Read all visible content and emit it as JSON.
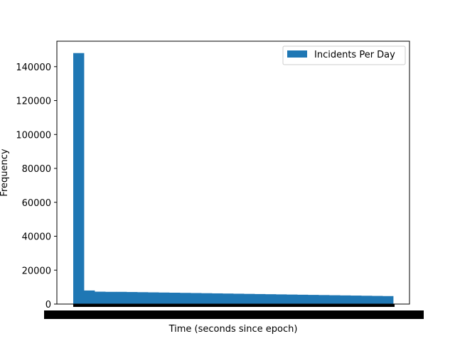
{
  "chart_data": {
    "type": "bar",
    "subtype": "histogram",
    "xlabel": "Time (seconds since epoch)",
    "ylabel": "Frequency",
    "ylim": [
      0,
      155000
    ],
    "yticks": [
      0,
      20000,
      40000,
      60000,
      80000,
      100000,
      120000,
      140000
    ],
    "x_tick_labels_legible": false,
    "legend": {
      "placement": "top-right",
      "entries": [
        "Incidents Per Day"
      ]
    },
    "grid": false,
    "bar_color": "#1f77b4",
    "series": [
      {
        "name": "Incidents Per Day",
        "bin_count": 30,
        "values": [
          148000,
          8000,
          7300,
          7200,
          7200,
          7100,
          7000,
          6900,
          6800,
          6700,
          6600,
          6500,
          6400,
          6300,
          6200,
          6100,
          6000,
          5900,
          5800,
          5700,
          5600,
          5500,
          5400,
          5300,
          5200,
          5100,
          5000,
          4900,
          4800,
          4700
        ]
      }
    ]
  }
}
